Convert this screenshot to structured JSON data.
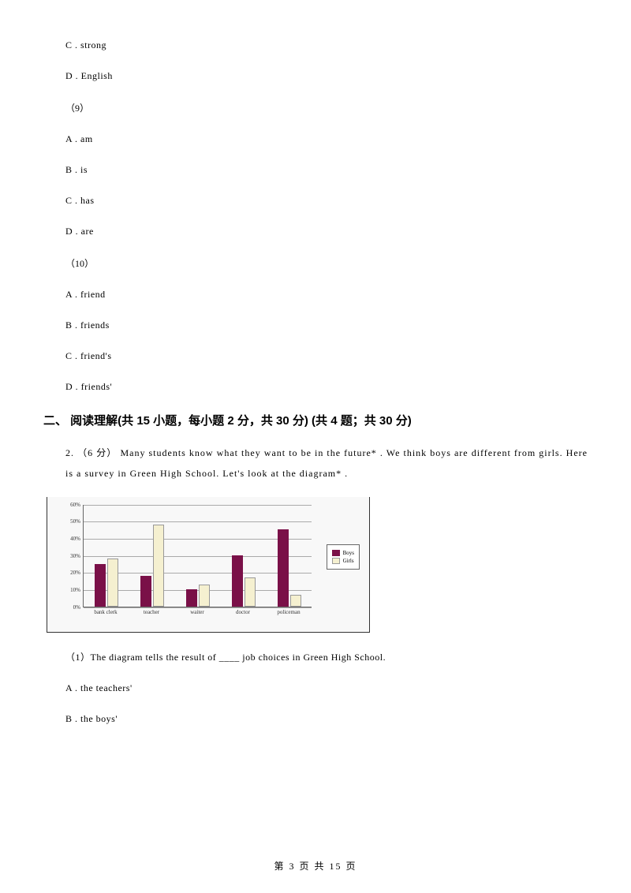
{
  "options_block1": {
    "c": "C . strong",
    "d": "D . English"
  },
  "q9": {
    "num": "（9）",
    "a": "A . am",
    "b": "B . is",
    "c": "C . has",
    "d": "D . are"
  },
  "q10": {
    "num": "（10）",
    "a": "A . friend",
    "b": "B . friends",
    "c": "C . friend's",
    "d": "D . friends'"
  },
  "section2_heading": "二、 阅读理解(共 15 小题，每小题 2 分，共 30 分)  (共 4 题；共 30 分)",
  "reading_intro": "2. （6 分）  Many students know what they want to be in the future* . We think boys are different from girls. Here is a survey in Green High School. Let's look at the diagram* .",
  "chart": {
    "type": "bar",
    "categories": [
      "bank clerk",
      "teacher",
      "waiter",
      "doctor",
      "policeman"
    ],
    "boys_values": [
      25,
      18,
      10,
      30,
      45
    ],
    "girls_values": [
      28,
      48,
      13,
      17,
      7
    ],
    "boys_color": "#7a1048",
    "girls_color": "#f5f0d0",
    "ymax": 60,
    "ytick_step": 10,
    "yticks": [
      "0%",
      "10%",
      "20%",
      "30%",
      "40%",
      "50%",
      "60%"
    ],
    "grid_color": "#aaaaaa",
    "bg_color": "#f8f8f8",
    "border_color": "#333333",
    "legend": {
      "boys": "Boys",
      "girls": "Girls"
    }
  },
  "subq1": "（1）The diagram tells the result of ____ job choices in Green High School.",
  "subq1_options": {
    "a": "A . the teachers'",
    "b": "B . the boys'"
  },
  "footer": "第 3 页 共 15 页"
}
